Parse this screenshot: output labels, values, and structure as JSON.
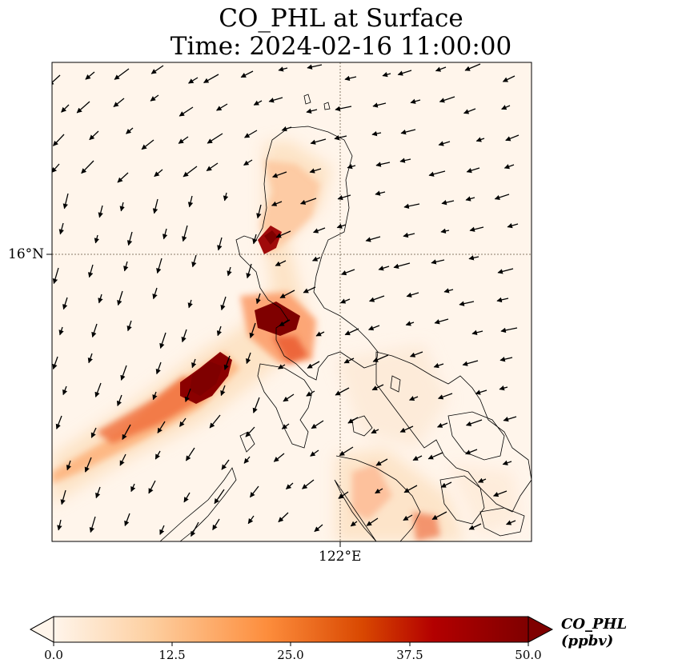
{
  "title_line1": "CO_PHL at Surface",
  "title_line2": "Time: 2024-02-16 11:00:00",
  "axes": {
    "lat_label": "16°N",
    "lon_label": "122°E"
  },
  "colorbar": {
    "label": "CO_PHL (ppbv)",
    "ticks": [
      "0.0",
      "12.5",
      "25.0",
      "37.5",
      "50.0"
    ],
    "min": 0,
    "max": 50,
    "colormap": [
      "#fff5eb",
      "#fdd0a2",
      "#fd8d3c",
      "#d94801",
      "#b30000",
      "#7f0000"
    ]
  },
  "colors": {
    "background": "#fff5eb",
    "coast": "#000000",
    "grid": "#8a7a6a"
  }
}
